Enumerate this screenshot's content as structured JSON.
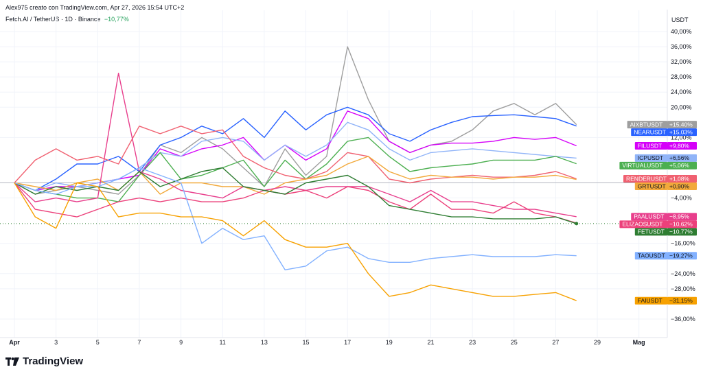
{
  "header": {
    "author_line": "Alex975 creato con TradingView.com, Apr 27, 2026 15:54 UTC+2",
    "symbol": "Fetch.AI / TetherUS · 1D · Binance",
    "symbol_change": "−10,77%",
    "currency": "USDT"
  },
  "brand": {
    "name": "TradingView",
    "icon": "tradingview-logo-icon"
  },
  "colors": {
    "background": "#ffffff",
    "grid": "#f0f3fa",
    "axis_text": "#131722"
  },
  "chart_data": {
    "type": "line",
    "title": "Fetch.AI / TetherUS · 1D · Binance",
    "ylabel": "USDT",
    "ylim": [
      -40,
      42
    ],
    "x": [
      0,
      1,
      2,
      3,
      4,
      5,
      6,
      7,
      8,
      9,
      10,
      11,
      12,
      13,
      14,
      15,
      16,
      17,
      18,
      19,
      20,
      21,
      22,
      23,
      24,
      25,
      26,
      27
    ],
    "xlim": [
      0,
      31
    ],
    "x_ticks": [
      {
        "x": 0,
        "label": "Apr",
        "bold": true
      },
      {
        "x": 2,
        "label": "3"
      },
      {
        "x": 4,
        "label": "5"
      },
      {
        "x": 6,
        "label": "7"
      },
      {
        "x": 8,
        "label": "9"
      },
      {
        "x": 10,
        "label": "11"
      },
      {
        "x": 12,
        "label": "13"
      },
      {
        "x": 14,
        "label": "15"
      },
      {
        "x": 16,
        "label": "17"
      },
      {
        "x": 18,
        "label": "19"
      },
      {
        "x": 20,
        "label": "21"
      },
      {
        "x": 22,
        "label": "23"
      },
      {
        "x": 24,
        "label": "25"
      },
      {
        "x": 26,
        "label": "27"
      },
      {
        "x": 28,
        "label": "29"
      },
      {
        "x": 30,
        "label": "Mag",
        "bold": true
      }
    ],
    "y_ticks": [
      {
        "v": 40,
        "label": "40,00%"
      },
      {
        "v": 36,
        "label": "36,00%"
      },
      {
        "v": 32,
        "label": "32,00%"
      },
      {
        "v": 28,
        "label": "28,00%"
      },
      {
        "v": 24,
        "label": "24,00%"
      },
      {
        "v": 20,
        "label": "20,00%"
      },
      {
        "v": 12,
        "label": "12,00%"
      },
      {
        "v": -4,
        "label": "−4,00%"
      },
      {
        "v": -16,
        "label": "−16,00%"
      },
      {
        "v": -24,
        "label": "−24,00%"
      },
      {
        "v": -28,
        "label": "−28,00%"
      },
      {
        "v": -36,
        "label": "−36,00%"
      }
    ],
    "series": [
      {
        "name": "AIXBTUSDT",
        "label": "+15,40%",
        "last": 15.4,
        "color": "#9e9e9e",
        "text_color": "#ffffff",
        "values": [
          0,
          -3,
          -2,
          -1,
          -2,
          -3,
          2,
          10,
          8,
          12,
          9,
          4,
          -1,
          9,
          2,
          7,
          36,
          22,
          11,
          8,
          10,
          11,
          14,
          19,
          21,
          18,
          21,
          15.4
        ]
      },
      {
        "name": "NEARUSDT",
        "label": "+15,03%",
        "last": 15.03,
        "color": "#2962ff",
        "text_color": "#ffffff",
        "values": [
          0,
          -2,
          1,
          5,
          5,
          7,
          3,
          10,
          12,
          15,
          13,
          17,
          12,
          19,
          14,
          18,
          20,
          18,
          13,
          11,
          14,
          16,
          17.5,
          17.8,
          18,
          17.5,
          17,
          15.03
        ]
      },
      {
        "name": "FILUSDT",
        "label": "+9,80%",
        "last": 9.8,
        "color": "#d500f9",
        "text_color": "#ffffff",
        "values": [
          0,
          -2,
          -1,
          -1,
          0,
          1,
          2,
          9,
          7,
          9,
          10,
          12,
          6,
          10,
          6,
          9,
          19,
          17,
          11,
          8,
          10,
          10.5,
          10.5,
          11,
          12,
          11.5,
          12,
          9.8
        ]
      },
      {
        "name": "ICPUSDT",
        "label": "+6,56%",
        "last": 6.56,
        "color": "#90b4f8",
        "text_color": "#131722",
        "values": [
          0,
          -2,
          0,
          -1,
          0,
          1,
          4,
          8,
          7,
          11,
          12,
          11,
          6,
          10,
          7,
          10,
          16,
          14,
          9,
          6,
          8,
          8.5,
          9,
          8.5,
          8,
          7.5,
          7,
          6.56
        ]
      },
      {
        "name": "VIRTUALUSDT",
        "label": "+5,06%",
        "last": 5.06,
        "color": "#4caf50",
        "text_color": "#ffffff",
        "values": [
          0,
          -2,
          -3,
          -4,
          -4,
          -5,
          2,
          8,
          1,
          2,
          4,
          6,
          -1,
          6,
          1,
          5,
          11,
          12,
          7,
          3,
          4,
          4.5,
          5,
          6,
          6,
          6,
          7,
          5.06
        ]
      },
      {
        "name": "RENDERUSDT",
        "label": "+1,08%",
        "last": 1.08,
        "color": "#f06070",
        "text_color": "#ffffff",
        "values": [
          0,
          6,
          9,
          6,
          7,
          5,
          15,
          13,
          15,
          13,
          14,
          7,
          4,
          2,
          1,
          3,
          8,
          7,
          1,
          0,
          1,
          1.5,
          2,
          1.5,
          1.5,
          2,
          3,
          1.08
        ]
      },
      {
        "name": "GRTUSDT",
        "label": "+0,90%",
        "last": 0.9,
        "color": "#f2a93b",
        "text_color": "#131722",
        "values": [
          0,
          -1,
          -2,
          0,
          1,
          -2,
          3,
          -3,
          0,
          0,
          -1,
          -1,
          -3,
          0,
          1,
          2,
          5,
          7,
          3,
          1,
          2,
          1.5,
          1.5,
          1,
          1.5,
          1.5,
          2,
          0.9
        ]
      },
      {
        "name": "PAALUSDT",
        "label": "−8,95%",
        "last": -8.95,
        "color": "#e83e8c",
        "text_color": "#ffffff",
        "values": [
          0,
          -5,
          -4,
          -5,
          -4,
          29,
          3,
          1,
          -2,
          -3,
          -4,
          -1,
          -2,
          -1,
          -2,
          -1,
          -1,
          -1,
          -3,
          -5,
          -2,
          -5,
          -5,
          -6,
          -7,
          -7,
          -8,
          -8.95
        ]
      },
      {
        "name": "ELIZAOSUSDT",
        "label": "−10,62%",
        "last": -10.62,
        "color": "#ec407a",
        "text_color": "#ffffff",
        "values": [
          0,
          -7,
          -8,
          -9,
          -7,
          -5,
          -4,
          -5,
          -4,
          -5,
          -5,
          -4,
          -2,
          -3,
          -2,
          -4,
          -1,
          -2,
          -5,
          -7,
          -3,
          -7,
          -7,
          -8,
          -5,
          -8,
          -9,
          -10.62
        ]
      },
      {
        "name": "FETUSDT",
        "label": "−10,77%",
        "last": -10.77,
        "color": "#2e7d32",
        "text_color": "#ffffff",
        "values": [
          0,
          -3,
          -1,
          -2,
          -1,
          -2,
          3,
          -1,
          1,
          3,
          4,
          -1,
          -2,
          -3,
          0,
          1,
          2,
          -1,
          -6,
          -7,
          -8,
          -9,
          -9,
          -9.5,
          -9.5,
          -9.5,
          -9,
          -10.77
        ]
      },
      {
        "name": "TAOUSDT",
        "label": "−19,27%",
        "last": -19.27,
        "color": "#82b1ff",
        "text_color": "#131722",
        "values": [
          0,
          -2,
          -3,
          -1,
          -1,
          1,
          4,
          2,
          0,
          -16,
          -12,
          -15,
          -14,
          -23,
          -22,
          -18,
          -17,
          -20,
          -21,
          -21,
          -20,
          -19.5,
          -19,
          -19.5,
          -19.5,
          -19.5,
          -19,
          -19.27
        ]
      },
      {
        "name": "FAIUSDT",
        "label": "−31,15%",
        "last": -31.15,
        "color": "#f7a100",
        "text_color": "#131722",
        "values": [
          0,
          -9,
          -12,
          0,
          -1,
          -9,
          -8,
          -8,
          -9,
          -9,
          -10,
          -14,
          -10,
          -15,
          -17,
          -17,
          -16,
          -24,
          -30,
          -29,
          -27,
          -28,
          -29,
          -30,
          -30,
          -29.5,
          -29,
          -31.15
        ]
      }
    ]
  }
}
